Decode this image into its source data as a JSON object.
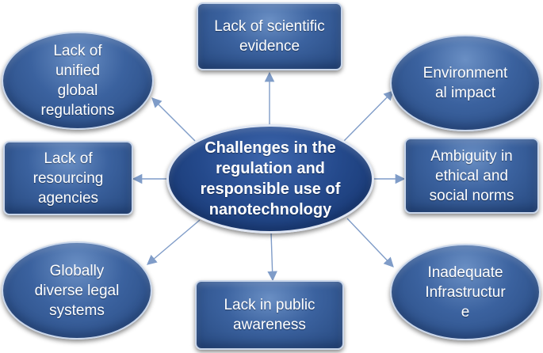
{
  "diagram": {
    "center": {
      "label": "Challenges in the\nregulation and\nresponsible use of\nnanotechnology"
    },
    "nodes": [
      {
        "id": "scientific-evidence",
        "label": "Lack of scientific\nevidence"
      },
      {
        "id": "unified-regulations",
        "label": "Lack of\nunified\nglobal\nregulations"
      },
      {
        "id": "environmental-impact",
        "label": "Environment\nal impact"
      },
      {
        "id": "resourcing-agencies",
        "label": "Lack of\nresourcing\nagencies"
      },
      {
        "id": "ethical-social-norms",
        "label": "Ambiguity in\nethical and\nsocial norms"
      },
      {
        "id": "legal-systems",
        "label": "Globally\ndiverse legal\nsystems"
      },
      {
        "id": "public-awareness",
        "label": "Lack in public\nawareness"
      },
      {
        "id": "infrastructure",
        "label": "Inadequate\nInfrastructur\ne"
      }
    ],
    "colors": {
      "node_fill": "#3b629f",
      "center_fill": "#24498b",
      "node_border": "#c9d6ea",
      "arrow": "#7f9cc8",
      "text": "#ffffff"
    }
  }
}
